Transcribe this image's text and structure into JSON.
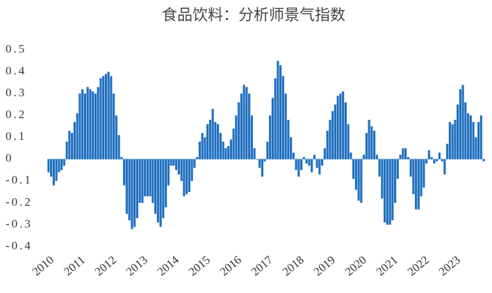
{
  "chart_data": {
    "type": "bar",
    "title": "食品饮料：分析师景气指数",
    "categories": [
      "2010",
      null,
      null,
      null,
      null,
      null,
      null,
      null,
      null,
      null,
      null,
      null,
      "2011",
      null,
      null,
      null,
      null,
      null,
      null,
      null,
      null,
      null,
      null,
      null,
      "2012",
      null,
      null,
      null,
      null,
      null,
      null,
      null,
      null,
      null,
      null,
      null,
      "2013",
      null,
      null,
      null,
      null,
      null,
      null,
      null,
      null,
      null,
      null,
      null,
      "2014",
      null,
      null,
      null,
      null,
      null,
      null,
      null,
      null,
      null,
      null,
      null,
      "2015",
      null,
      null,
      null,
      null,
      null,
      null,
      null,
      null,
      null,
      null,
      null,
      "2016",
      null,
      null,
      null,
      null,
      null,
      null,
      null,
      null,
      null,
      null,
      null,
      "2017",
      null,
      null,
      null,
      null,
      null,
      null,
      null,
      null,
      null,
      null,
      null,
      "2018",
      null,
      null,
      null,
      null,
      null,
      null,
      null,
      null,
      null,
      null,
      null,
      "2019",
      null,
      null,
      null,
      null,
      null,
      null,
      null,
      null,
      null,
      null,
      null,
      "2020",
      null,
      null,
      null,
      null,
      null,
      null,
      null,
      null,
      null,
      null,
      null,
      "2021",
      null,
      null,
      null,
      null,
      null,
      null,
      null,
      null,
      null,
      null,
      null,
      "2022",
      null,
      null,
      null,
      null,
      null,
      null,
      null,
      null,
      null,
      null,
      null,
      "2023",
      null,
      null,
      null,
      null,
      null,
      null,
      null,
      null,
      null,
      null,
      null
    ],
    "values": [
      -0.06,
      -0.08,
      -0.12,
      -0.1,
      -0.06,
      -0.05,
      -0.03,
      0.08,
      0.13,
      0.12,
      0.17,
      0.21,
      0.3,
      0.32,
      0.3,
      0.33,
      0.32,
      0.31,
      0.3,
      0.33,
      0.37,
      0.38,
      0.39,
      0.4,
      0.38,
      0.3,
      0.2,
      0.11,
      0.01,
      -0.12,
      -0.25,
      -0.28,
      -0.32,
      -0.31,
      -0.27,
      -0.2,
      -0.2,
      -0.17,
      -0.17,
      -0.17,
      -0.2,
      -0.25,
      -0.29,
      -0.31,
      -0.27,
      -0.22,
      -0.12,
      -0.03,
      -0.03,
      -0.05,
      -0.07,
      -0.1,
      -0.17,
      -0.16,
      -0.15,
      -0.1,
      -0.04,
      0.01,
      0.08,
      0.12,
      0.1,
      0.16,
      0.18,
      0.23,
      0.17,
      0.16,
      0.12,
      0.08,
      0.05,
      0.06,
      0.09,
      0.14,
      0.2,
      0.26,
      0.3,
      0.34,
      0.33,
      0.3,
      0.2,
      0.05,
      0.0,
      -0.04,
      -0.08,
      -0.01,
      0.08,
      0.2,
      0.28,
      0.37,
      0.45,
      0.43,
      0.38,
      0.3,
      0.18,
      0.1,
      0.03,
      -0.05,
      -0.08,
      -0.05,
      0.01,
      -0.02,
      -0.03,
      -0.06,
      0.02,
      -0.04,
      -0.07,
      -0.03,
      0.05,
      0.13,
      0.18,
      0.22,
      0.25,
      0.29,
      0.3,
      0.31,
      0.26,
      0.16,
      0.03,
      -0.09,
      -0.14,
      -0.19,
      -0.2,
      0.02,
      0.12,
      0.18,
      0.15,
      0.13,
      0.02,
      -0.08,
      -0.18,
      -0.29,
      -0.3,
      -0.3,
      -0.28,
      -0.2,
      -0.09,
      0.02,
      0.05,
      0.05,
      0.01,
      -0.08,
      -0.16,
      -0.23,
      -0.23,
      -0.17,
      -0.13,
      -0.02,
      0.04,
      0.01,
      -0.02,
      -0.01,
      0.03,
      -0.01,
      -0.07,
      0.07,
      0.17,
      0.16,
      0.18,
      0.25,
      0.32,
      0.34,
      0.26,
      0.21,
      0.2,
      0.17,
      0.1,
      0.17,
      0.2,
      -0.01
    ],
    "color": "#1f6fbf",
    "ylim": [
      -0.4,
      0.5
    ],
    "yticks": [
      0.5,
      0.4,
      0.3,
      0.2,
      0.1,
      0,
      -0.1,
      -0.2,
      -0.3,
      -0.4
    ]
  }
}
